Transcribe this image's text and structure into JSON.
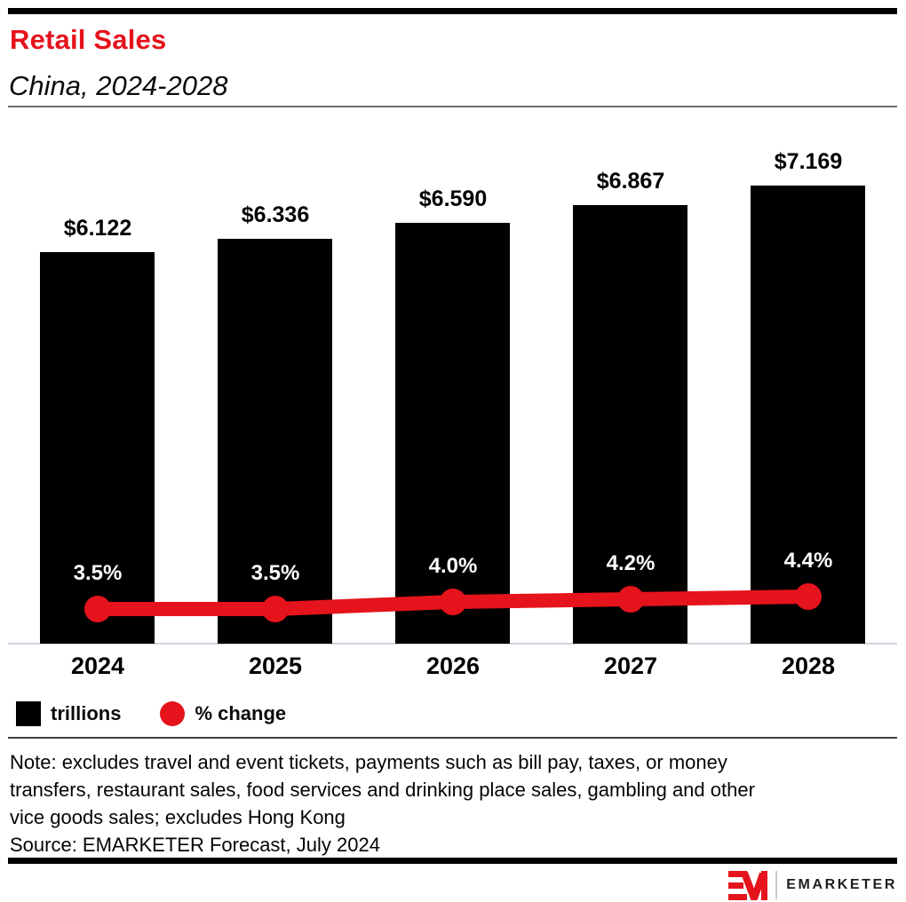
{
  "page": {
    "background": "#ffffff",
    "accent_red": "#e5131c",
    "bar_color": "#000000"
  },
  "header": {
    "title": "Retail Sales",
    "subtitle": "China, 2024-2028"
  },
  "chart_data": {
    "type": "bar",
    "title": "Retail Sales",
    "subtitle": "China, 2024-2028",
    "categories": [
      "2024",
      "2025",
      "2026",
      "2027",
      "2028"
    ],
    "series": [
      {
        "name": "trillions",
        "chart_type": "bar",
        "color": "#000000",
        "values": [
          6.122,
          6.336,
          6.59,
          6.867,
          7.169
        ],
        "data_labels": [
          "$6.122",
          "$6.336",
          "$6.590",
          "$6.867",
          "$7.169"
        ]
      },
      {
        "name": "% change",
        "chart_type": "line",
        "color": "#e5131c",
        "values": [
          3.5,
          3.5,
          4.0,
          4.2,
          4.4
        ],
        "data_labels": [
          "3.5%",
          "3.5%",
          "4.0%",
          "4.2%",
          "4.4%"
        ]
      }
    ],
    "legend_position": "bottom-left",
    "grid": false,
    "y_axis_visible": false,
    "x_axis_line": true
  },
  "legend": {
    "items": [
      {
        "label": "trillions",
        "swatch": "square",
        "color": "#000000"
      },
      {
        "label": "% change",
        "swatch": "circle",
        "color": "#e5131c"
      }
    ]
  },
  "footer": {
    "note_lines": [
      "Note: excludes travel and event tickets, payments such as bill pay, taxes, or money",
      "transfers, restaurant sales, food services and drinking place sales, gambling and other",
      "vice goods sales; excludes Hong Kong"
    ],
    "source": "Source: EMARKETER Forecast, July 2024"
  },
  "branding": {
    "logo_mark": "EM",
    "logo_text": "EMARKETER"
  }
}
